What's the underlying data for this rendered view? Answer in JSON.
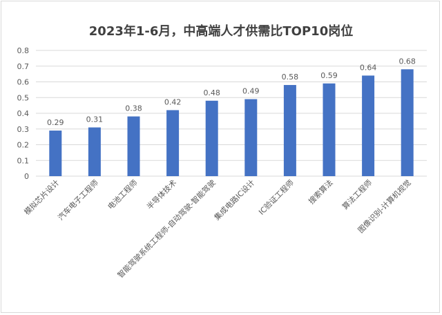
{
  "chart_data": {
    "type": "bar",
    "title": "2023年1-6月，中高端人才供需比TOP10岗位",
    "categories": [
      "模拟芯片设计",
      "汽车电子工程师",
      "电池工程师",
      "半导体技术",
      "智能驾驶系统工程师-自动驾驶-智能驾驶",
      "集成电路IC设计",
      "IC验证工程师",
      "搜索算法",
      "算法工程师",
      "图像识别-计算机视觉"
    ],
    "values": [
      0.29,
      0.31,
      0.38,
      0.42,
      0.48,
      0.49,
      0.58,
      0.59,
      0.64,
      0.68
    ],
    "data_labels": [
      "0.29",
      "0.31",
      "0.38",
      "0.42",
      "0.48",
      "0.49",
      "0.58",
      "0.59",
      "0.64",
      "0.68"
    ],
    "ylim": [
      0,
      0.8
    ],
    "yticks": [
      0,
      0.1,
      0.2,
      0.3,
      0.4,
      0.5,
      0.6,
      0.7,
      0.8
    ],
    "ytick_labels": [
      "0",
      "0.1",
      "0.2",
      "0.3",
      "0.4",
      "0.5",
      "0.6",
      "0.7",
      "0.8"
    ],
    "grid": true,
    "bar_color": "#4472c4",
    "grid_color": "#d9d9d9",
    "text_color": "#595959"
  }
}
